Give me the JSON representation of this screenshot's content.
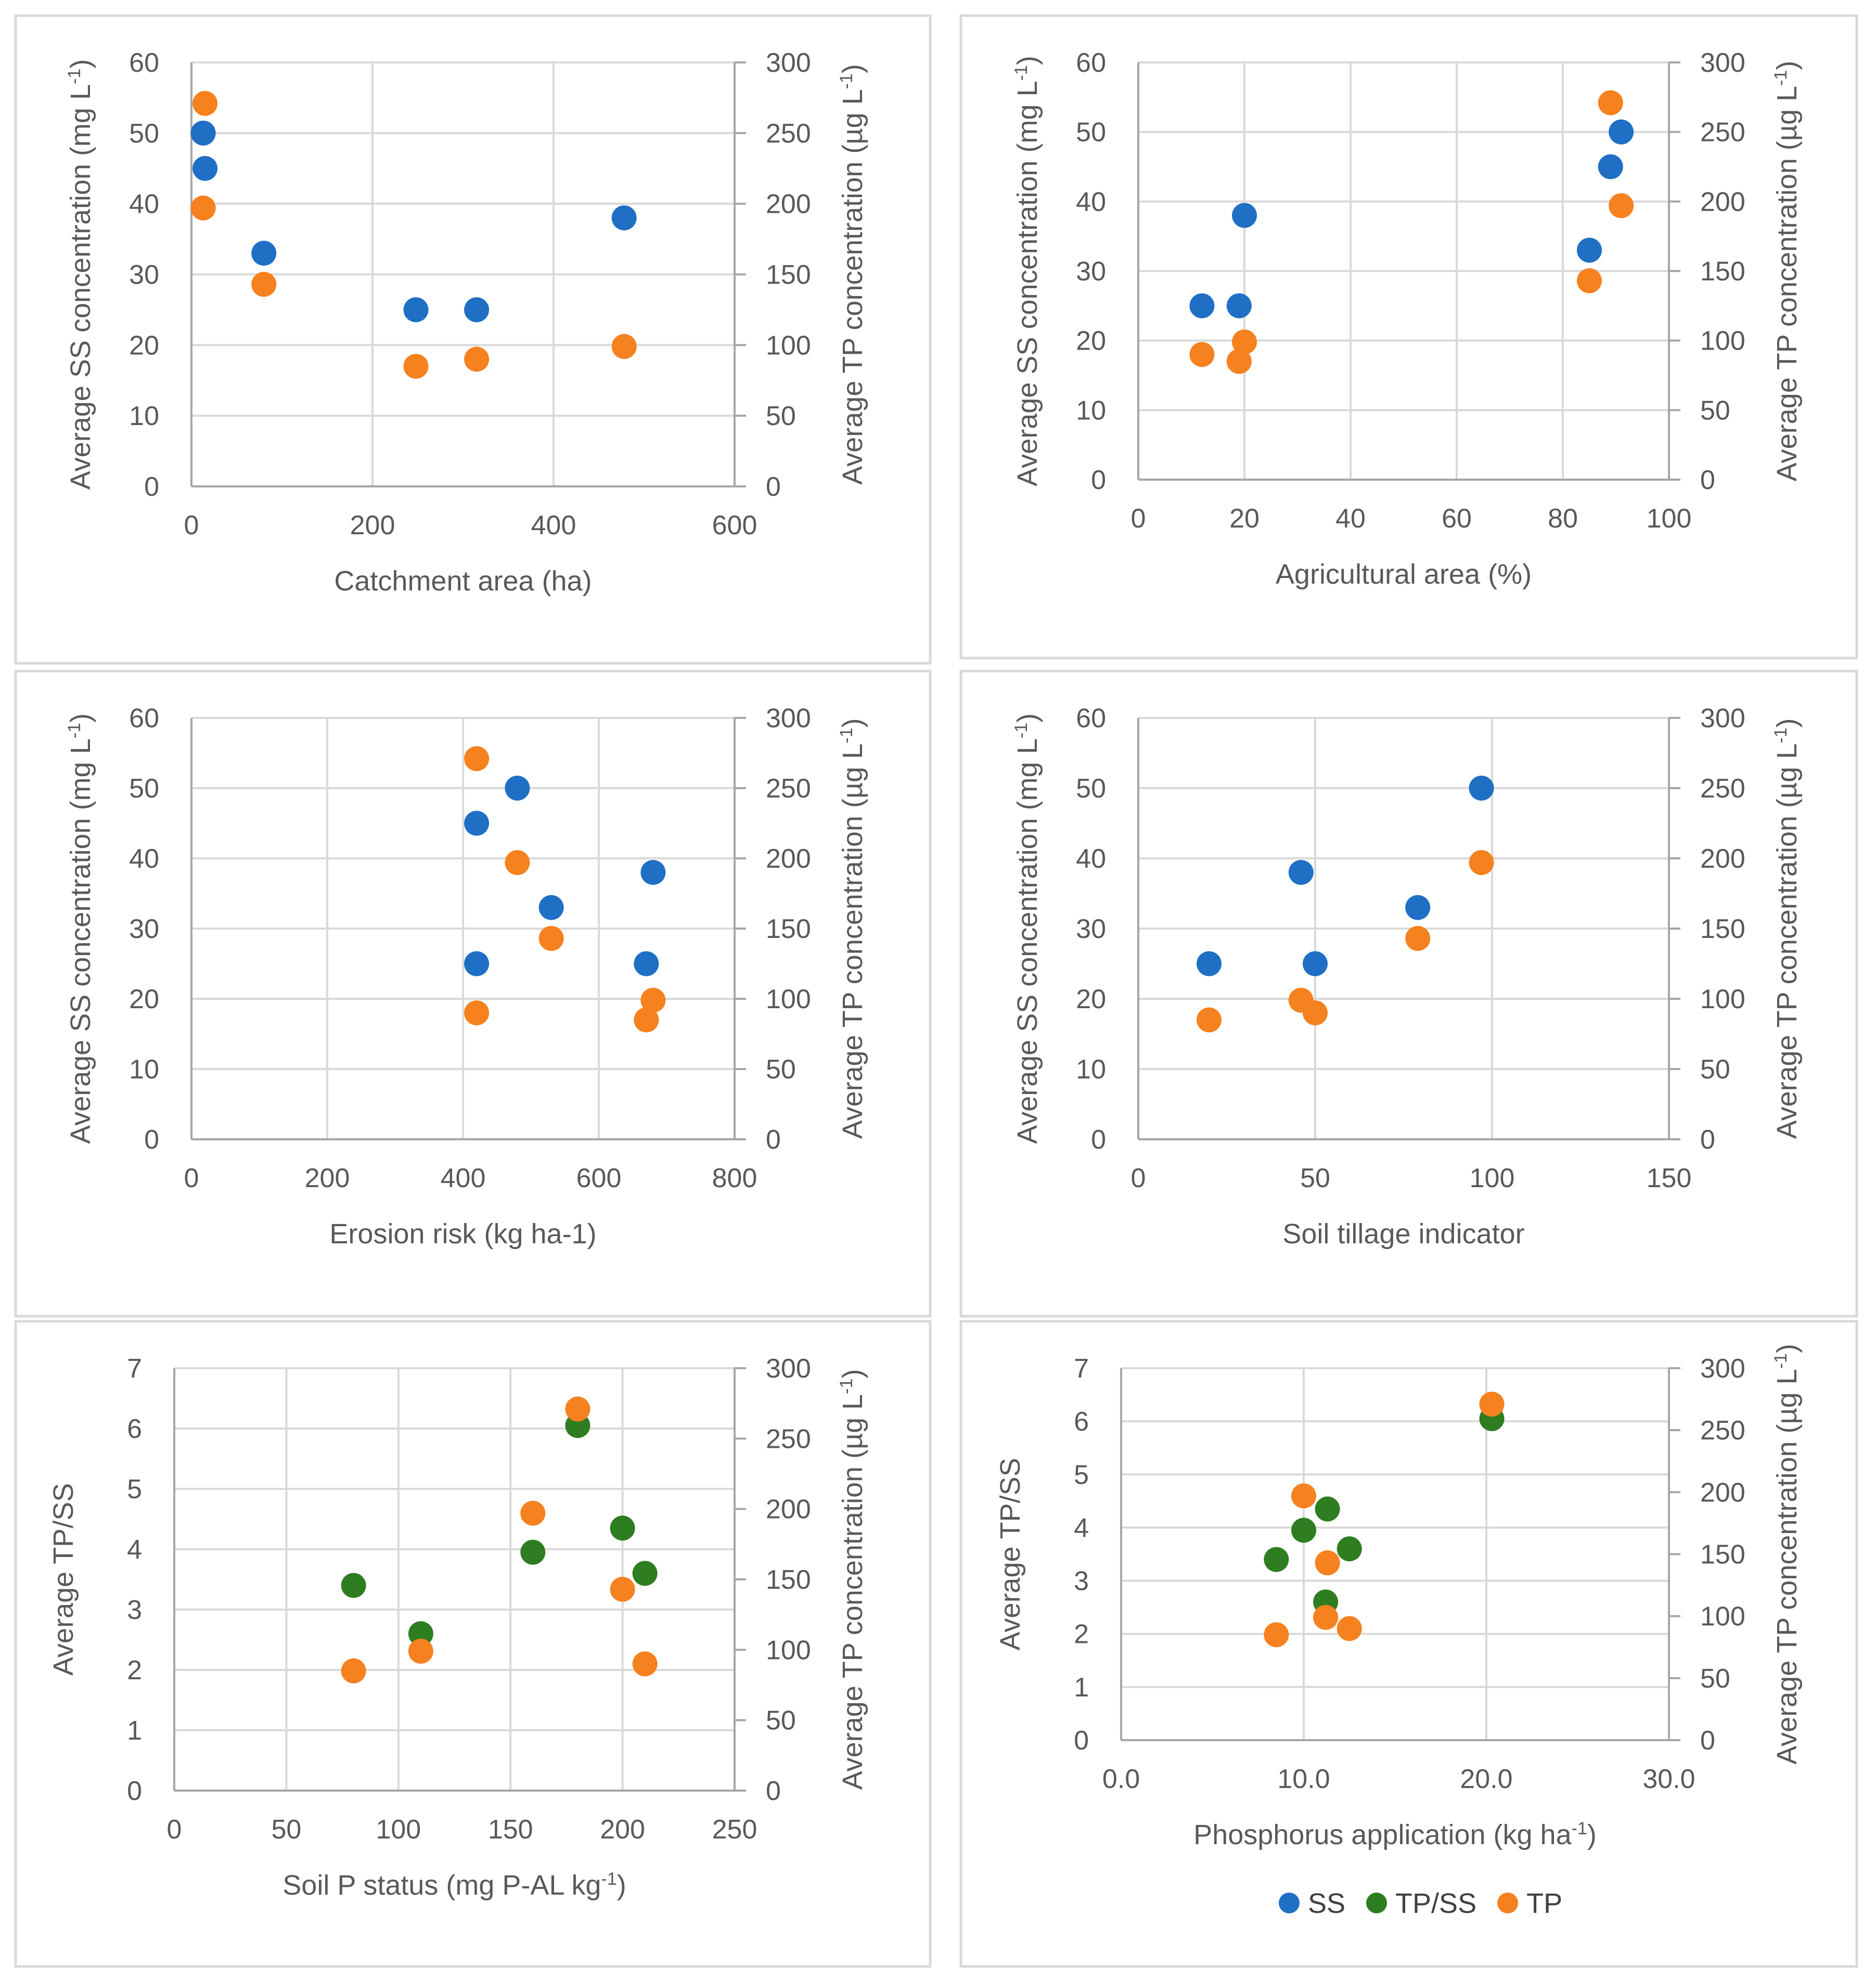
{
  "colors": {
    "SS": "#1f6fc5",
    "TP/SS": "#2e7d20",
    "TP": "#f5811f",
    "grid": "#d9d9d9",
    "axis": "#a6a6a6",
    "text": "#595959"
  },
  "legend": {
    "placement": "bottom",
    "items": [
      {
        "series": "SS",
        "label": "SS"
      },
      {
        "series": "TP/SS",
        "label": "TP/SS"
      },
      {
        "series": "TP",
        "label": "TP"
      }
    ]
  },
  "chart_data": [
    {
      "type": "scatter",
      "xlabel": "Catchment area (ha)",
      "ylabel_left": {
        "base": "Average SS concentration (mg L",
        "sup": "-1",
        "tail": ")"
      },
      "ylabel_right": {
        "base": "Average TP concentration (µg L",
        "sup": "-1",
        "tail": ")"
      },
      "xlim": [
        0,
        600
      ],
      "xticks": [
        0,
        200,
        400,
        600
      ],
      "xtick_labels": [
        "0",
        "200",
        "400",
        "600"
      ],
      "ylim_left": [
        0,
        60
      ],
      "yticks_left": [
        0,
        10,
        20,
        30,
        40,
        50,
        60
      ],
      "ylim_right": [
        0,
        300
      ],
      "yticks_right": [
        0,
        50,
        100,
        150,
        200,
        250,
        300
      ],
      "series": [
        {
          "name": "SS",
          "axis": "left",
          "points": [
            [
              13,
              50
            ],
            [
              15,
              45
            ],
            [
              80,
              33
            ],
            [
              248,
              25
            ],
            [
              315,
              25
            ],
            [
              478,
              38
            ]
          ]
        },
        {
          "name": "TP",
          "axis": "right",
          "points": [
            [
              15,
              271
            ],
            [
              13,
              197
            ],
            [
              80,
              143
            ],
            [
              248,
              85
            ],
            [
              315,
              90
            ],
            [
              478,
              99
            ]
          ]
        }
      ]
    },
    {
      "type": "scatter",
      "xlabel": "Agricultural area (%)",
      "ylabel_left": {
        "base": "Average SS concentration (mg L",
        "sup": "-1",
        "tail": ")"
      },
      "ylabel_right": {
        "base": "Average TP concentration (µg L",
        "sup": "-1",
        "tail": ")"
      },
      "xlim": [
        0,
        100
      ],
      "xticks": [
        0,
        20,
        40,
        60,
        80,
        100
      ],
      "xtick_labels": [
        "0",
        "20",
        "40",
        "60",
        "80",
        "100"
      ],
      "ylim_left": [
        0,
        60
      ],
      "yticks_left": [
        0,
        10,
        20,
        30,
        40,
        50,
        60
      ],
      "ylim_right": [
        0,
        300
      ],
      "yticks_right": [
        0,
        50,
        100,
        150,
        200,
        250,
        300
      ],
      "series": [
        {
          "name": "SS",
          "axis": "left",
          "points": [
            [
              91,
              50
            ],
            [
              89,
              45
            ],
            [
              85,
              33
            ],
            [
              12,
              25
            ],
            [
              19,
              25
            ],
            [
              20,
              38
            ]
          ]
        },
        {
          "name": "TP",
          "axis": "right",
          "points": [
            [
              89,
              271
            ],
            [
              91,
              197
            ],
            [
              85,
              143
            ],
            [
              12,
              90
            ],
            [
              19,
              85
            ],
            [
              20,
              99
            ]
          ]
        }
      ]
    },
    {
      "type": "scatter",
      "xlabel": "Erosion risk (kg ha-1)",
      "ylabel_left": {
        "base": "Average SS concentration (mg L",
        "sup": "-1",
        "tail": ")"
      },
      "ylabel_right": {
        "base": "Average TP concentration (µg L",
        "sup": "-1",
        "tail": ")"
      },
      "xlim": [
        0,
        800
      ],
      "xticks": [
        0,
        200,
        400,
        600,
        800
      ],
      "xtick_labels": [
        "0",
        "200",
        "400",
        "600",
        "800"
      ],
      "ylim_left": [
        0,
        60
      ],
      "yticks_left": [
        0,
        10,
        20,
        30,
        40,
        50,
        60
      ],
      "ylim_right": [
        0,
        300
      ],
      "yticks_right": [
        0,
        50,
        100,
        150,
        200,
        250,
        300
      ],
      "series": [
        {
          "name": "SS",
          "axis": "left",
          "points": [
            [
              480,
              50
            ],
            [
              420,
              45
            ],
            [
              530,
              33
            ],
            [
              420,
              25
            ],
            [
              670,
              25
            ],
            [
              680,
              38
            ]
          ]
        },
        {
          "name": "TP",
          "axis": "right",
          "points": [
            [
              420,
              271
            ],
            [
              480,
              197
            ],
            [
              530,
              143
            ],
            [
              420,
              90
            ],
            [
              670,
              85
            ],
            [
              680,
              99
            ]
          ]
        }
      ]
    },
    {
      "type": "scatter",
      "xlabel": "Soil tillage indicator",
      "ylabel_left": {
        "base": "Average SS concentration (mg L",
        "sup": "-1",
        "tail": ")"
      },
      "ylabel_right": {
        "base": "Average TP concentration (µg L",
        "sup": "-1",
        "tail": ")"
      },
      "xlim": [
        0,
        150
      ],
      "xticks": [
        0,
        50,
        100,
        150
      ],
      "xtick_labels": [
        "0",
        "50",
        "100",
        "150"
      ],
      "ylim_left": [
        0,
        60
      ],
      "yticks_left": [
        0,
        10,
        20,
        30,
        40,
        50,
        60
      ],
      "ylim_right": [
        0,
        300
      ],
      "yticks_right": [
        0,
        50,
        100,
        150,
        200,
        250,
        300
      ],
      "series": [
        {
          "name": "SS",
          "axis": "left",
          "points": [
            [
              97,
              50
            ],
            [
              46,
              38
            ],
            [
              79,
              33
            ],
            [
              20,
              25
            ],
            [
              50,
              25
            ]
          ]
        },
        {
          "name": "TP",
          "axis": "right",
          "points": [
            [
              97,
              197
            ],
            [
              79,
              143
            ],
            [
              46,
              99
            ],
            [
              50,
              90
            ],
            [
              20,
              85
            ]
          ]
        }
      ]
    },
    {
      "type": "scatter",
      "xlabel": {
        "base": "Soil P status (mg P-AL kg",
        "sup": "-1",
        "tail": ")"
      },
      "ylabel_left": {
        "base": "Average TP/SS",
        "sup": "",
        "tail": ""
      },
      "ylabel_right": {
        "base": "Average TP concentration (µg L",
        "sup": "-1",
        "tail": ")"
      },
      "xlim": [
        0,
        250
      ],
      "xticks": [
        0,
        50,
        100,
        150,
        200,
        250
      ],
      "xtick_labels": [
        "0",
        "50",
        "100",
        "150",
        "200",
        "250"
      ],
      "ylim_left": [
        0,
        7
      ],
      "yticks_left": [
        0,
        1,
        2,
        3,
        4,
        5,
        6,
        7
      ],
      "ylim_right": [
        0,
        300
      ],
      "yticks_right": [
        0,
        50,
        100,
        150,
        200,
        250,
        300
      ],
      "series": [
        {
          "name": "TP/SS",
          "axis": "left",
          "points": [
            [
              80,
              3.4
            ],
            [
              110,
              2.6
            ],
            [
              160,
              3.95
            ],
            [
              180,
              6.05
            ],
            [
              200,
              4.35
            ],
            [
              210,
              3.6
            ]
          ]
        },
        {
          "name": "TP",
          "axis": "right",
          "points": [
            [
              180,
              271
            ],
            [
              160,
              197
            ],
            [
              200,
              143
            ],
            [
              110,
              99
            ],
            [
              210,
              90
            ],
            [
              80,
              85
            ]
          ]
        }
      ]
    },
    {
      "type": "scatter",
      "xlabel": {
        "base": "Phosphorus application (kg ha",
        "sup": "-1",
        "tail": ")"
      },
      "ylabel_left": {
        "base": "Average TP/SS",
        "sup": "",
        "tail": ""
      },
      "ylabel_right": {
        "base": "Average TP concentration (µg L",
        "sup": "-1",
        "tail": ")"
      },
      "xlim": [
        0,
        30
      ],
      "xticks": [
        0,
        10,
        20,
        30
      ],
      "xtick_labels": [
        "0.0",
        "10.0",
        "20.0",
        "30.0"
      ],
      "ylim_left": [
        0,
        7
      ],
      "yticks_left": [
        0,
        1,
        2,
        3,
        4,
        5,
        6,
        7
      ],
      "ylim_right": [
        0,
        300
      ],
      "yticks_right": [
        0,
        50,
        100,
        150,
        200,
        250,
        300
      ],
      "series": [
        {
          "name": "TP/SS",
          "axis": "left",
          "points": [
            [
              8.5,
              3.4
            ],
            [
              10.0,
              3.95
            ],
            [
              11.3,
              4.35
            ],
            [
              12.5,
              3.6
            ],
            [
              11.2,
              2.6
            ],
            [
              20.3,
              6.05
            ]
          ]
        },
        {
          "name": "TP",
          "axis": "right",
          "points": [
            [
              20.3,
              271
            ],
            [
              10.0,
              197
            ],
            [
              11.3,
              143
            ],
            [
              11.2,
              99
            ],
            [
              12.5,
              90
            ],
            [
              8.5,
              85
            ]
          ]
        }
      ]
    }
  ]
}
